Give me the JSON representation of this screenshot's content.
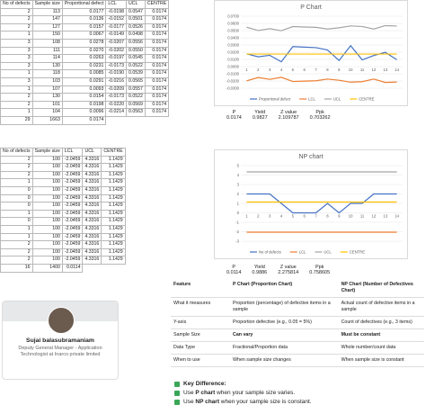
{
  "p_table": {
    "header": [
      "No of defects",
      "Sample size",
      "Proportional defect",
      "LCL",
      "UCL",
      "CENTRE"
    ],
    "rows": [
      [
        "2",
        "113",
        "0.0177",
        "-0.0198",
        "0.0547",
        "0.0174"
      ],
      [
        "2",
        "147",
        "0.0136",
        "-0.0152",
        "0.0501",
        "0.0174"
      ],
      [
        "2",
        "127",
        "0.0157",
        "-0.0177",
        "0.0526",
        "0.0174"
      ],
      [
        "1",
        "150",
        "0.0067",
        "-0.0149",
        "0.0498",
        "0.0174"
      ],
      [
        "3",
        "108",
        "0.0278",
        "-0.0207",
        "0.0556",
        "0.0174"
      ],
      [
        "3",
        "111",
        "0.0270",
        "-0.0202",
        "0.0550",
        "0.0174"
      ],
      [
        "3",
        "114",
        "0.0263",
        "-0.0197",
        "0.0545",
        "0.0174"
      ],
      [
        "3",
        "130",
        "0.0231",
        "-0.0173",
        "0.0522",
        "0.0174"
      ],
      [
        "1",
        "118",
        "0.0085",
        "-0.0190",
        "0.0539",
        "0.0174"
      ],
      [
        "3",
        "103",
        "0.0291",
        "-0.0216",
        "0.0565",
        "0.0174"
      ],
      [
        "1",
        "107",
        "0.0093",
        "-0.0209",
        "0.0557",
        "0.0174"
      ],
      [
        "2",
        "130",
        "0.0154",
        "-0.0173",
        "0.0522",
        "0.0174"
      ],
      [
        "2",
        "101",
        "0.0198",
        "-0.0220",
        "0.0569",
        "0.0174"
      ],
      [
        "1",
        "104",
        "0.0096",
        "-0.0214",
        "0.0563",
        "0.0174"
      ]
    ],
    "total": [
      "29",
      "1663",
      "0.0174"
    ]
  },
  "p_stats": {
    "labels": [
      "P",
      "Yield",
      "Z value",
      "Ppk"
    ],
    "values": [
      "0.0174",
      "0.9827",
      "2.109787",
      "0.703262"
    ]
  },
  "np_table": {
    "header": [
      "No of defects",
      "Sample size",
      "LCL",
      "UCL",
      "CENTRE"
    ],
    "rows": [
      [
        "2",
        "100",
        "-2.0459",
        "4.3316",
        "1.1429"
      ],
      [
        "2",
        "100",
        "-2.0459",
        "4.3316",
        "1.1429"
      ],
      [
        "2",
        "100",
        "-2.0459",
        "4.3316",
        "1.1429"
      ],
      [
        "1",
        "100",
        "-2.0459",
        "4.3316",
        "1.1429"
      ],
      [
        "0",
        "100",
        "-2.0459",
        "4.3316",
        "1.1429"
      ],
      [
        "0",
        "100",
        "-2.0459",
        "4.3316",
        "1.1429"
      ],
      [
        "0",
        "100",
        "-2.0459",
        "4.3316",
        "1.1429"
      ],
      [
        "1",
        "100",
        "-2.0459",
        "4.3316",
        "1.1429"
      ],
      [
        "0",
        "100",
        "-2.0459",
        "4.3316",
        "1.1429"
      ],
      [
        "1",
        "100",
        "-2.0459",
        "4.3316",
        "1.1429"
      ],
      [
        "1",
        "100",
        "-2.0459",
        "4.3316",
        "1.1429"
      ],
      [
        "2",
        "100",
        "-2.0459",
        "4.3316",
        "1.1429"
      ],
      [
        "2",
        "100",
        "-2.0459",
        "4.3316",
        "1.1429"
      ],
      [
        "2",
        "100",
        "-2.0459",
        "4.3316",
        "1.1429"
      ]
    ],
    "total": [
      "16",
      "1400",
      "0.0114"
    ]
  },
  "np_stats": {
    "labels": [
      "P",
      "Yield",
      "Z value",
      "Ppk"
    ],
    "values": [
      "0.0114",
      "0.9886",
      "2.275814",
      "0.758605"
    ]
  },
  "chart_data": [
    {
      "type": "line",
      "title": "P Chart",
      "categories": [
        "1",
        "2",
        "3",
        "4",
        "5",
        "6",
        "7",
        "8",
        "9",
        "10",
        "11",
        "12",
        "13",
        "14"
      ],
      "series": [
        {
          "name": "Proportional defect",
          "color": "#4472c4",
          "values": [
            0.0177,
            0.0136,
            0.0157,
            0.0067,
            0.0278,
            0.027,
            0.0263,
            0.0231,
            0.0085,
            0.0291,
            0.0093,
            0.0154,
            0.0198,
            0.0096
          ]
        },
        {
          "name": "LCL",
          "color": "#ed7d31",
          "values": [
            -0.0198,
            -0.0152,
            -0.0177,
            -0.0149,
            -0.0207,
            -0.0202,
            -0.0197,
            -0.0173,
            -0.019,
            -0.0216,
            -0.0209,
            -0.0173,
            -0.022,
            -0.0214
          ]
        },
        {
          "name": "UCL",
          "color": "#a5a5a5",
          "values": [
            0.0547,
            0.0501,
            0.0526,
            0.0498,
            0.0556,
            0.055,
            0.0545,
            0.0522,
            0.0539,
            0.0565,
            0.0557,
            0.0522,
            0.0569,
            0.0563
          ]
        },
        {
          "name": "CENTRE",
          "color": "#ffc000",
          "values": [
            0.0174,
            0.0174,
            0.0174,
            0.0174,
            0.0174,
            0.0174,
            0.0174,
            0.0174,
            0.0174,
            0.0174,
            0.0174,
            0.0174,
            0.0174,
            0.0174
          ]
        }
      ],
      "ylim": [
        -0.03,
        0.07
      ],
      "yticks": [
        {
          "value": 0.07,
          "label": "0.0700"
        },
        {
          "value": 0.06,
          "label": "0.0600"
        },
        {
          "value": 0.05,
          "label": "0.0500"
        },
        {
          "value": 0.04,
          "label": "0.0400"
        },
        {
          "value": 0.03,
          "label": "0.0300"
        },
        {
          "value": 0.02,
          "label": "0.0200"
        },
        {
          "value": 0.01,
          "label": "0.0100"
        },
        {
          "value": 0,
          "label": "0.0000"
        },
        {
          "value": -0.01,
          "label": "-0.0100"
        },
        {
          "value": -0.02,
          "label": "-0.0200"
        },
        {
          "value": -0.03,
          "label": "-0.0300"
        }
      ],
      "grid": true,
      "legend": "bottom"
    },
    {
      "type": "line",
      "title": "NP chart",
      "categories": [
        "1",
        "2",
        "3",
        "4",
        "5",
        "6",
        "7",
        "8",
        "9",
        "10",
        "11",
        "12",
        "13",
        "14"
      ],
      "series": [
        {
          "name": "No of defects",
          "color": "#4472c4",
          "values": [
            2,
            2,
            2,
            1,
            0,
            0,
            0,
            1,
            0,
            1,
            1,
            2,
            2,
            2
          ]
        },
        {
          "name": "LCL",
          "color": "#ed7d31",
          "values": [
            -2.0459,
            -2.0459,
            -2.0459,
            -2.0459,
            -2.0459,
            -2.0459,
            -2.0459,
            -2.0459,
            -2.0459,
            -2.0459,
            -2.0459,
            -2.0459,
            -2.0459,
            -2.0459
          ]
        },
        {
          "name": "UCL",
          "color": "#a5a5a5",
          "values": [
            4.3316,
            4.3316,
            4.3316,
            4.3316,
            4.3316,
            4.3316,
            4.3316,
            4.3316,
            4.3316,
            4.3316,
            4.3316,
            4.3316,
            4.3316,
            4.3316
          ]
        },
        {
          "name": "CENTRE",
          "color": "#ffc000",
          "values": [
            1.1429,
            1.1429,
            1.1429,
            1.1429,
            1.1429,
            1.1429,
            1.1429,
            1.1429,
            1.1429,
            1.1429,
            1.1429,
            1.1429,
            1.1429,
            1.1429
          ]
        }
      ],
      "ylim": [
        -3,
        5
      ],
      "yticks": [
        5,
        4,
        3,
        2,
        1,
        0,
        -1,
        -2,
        -3
      ],
      "grid": true,
      "legend": "bottom"
    }
  ],
  "comparison": {
    "header": [
      "Feature",
      "P Chart (Proportion Chart)",
      "NP Chart (Number of Defectives Chart)"
    ],
    "rows": [
      [
        "What it measures",
        "Proportion (percentage) of defective items in a sample",
        "Actual count of defective items in a sample"
      ],
      [
        "Y-axis",
        "Proportion defective (e.g., 0.05 = 5%)",
        "Count of defectives (e.g., 3 items)"
      ],
      [
        "Sample Size",
        "Can vary",
        "Must be constant"
      ],
      [
        "Data Type",
        "Fractional/Proportion data",
        "Whole number/count data"
      ],
      [
        "When to use",
        "When sample size changes",
        "When sample size is constant"
      ]
    ]
  },
  "profile": {
    "name": "Sujai balasubramaniam",
    "title": "Deputy General Manager - Application Technologist at Inarco private limited"
  },
  "key_difference": {
    "heading": "Key Difference:",
    "items": [
      [
        "Use ",
        "P chart",
        " when your sample size varies."
      ],
      [
        "Use ",
        "NP chart",
        " when your sample size is constant."
      ]
    ]
  }
}
